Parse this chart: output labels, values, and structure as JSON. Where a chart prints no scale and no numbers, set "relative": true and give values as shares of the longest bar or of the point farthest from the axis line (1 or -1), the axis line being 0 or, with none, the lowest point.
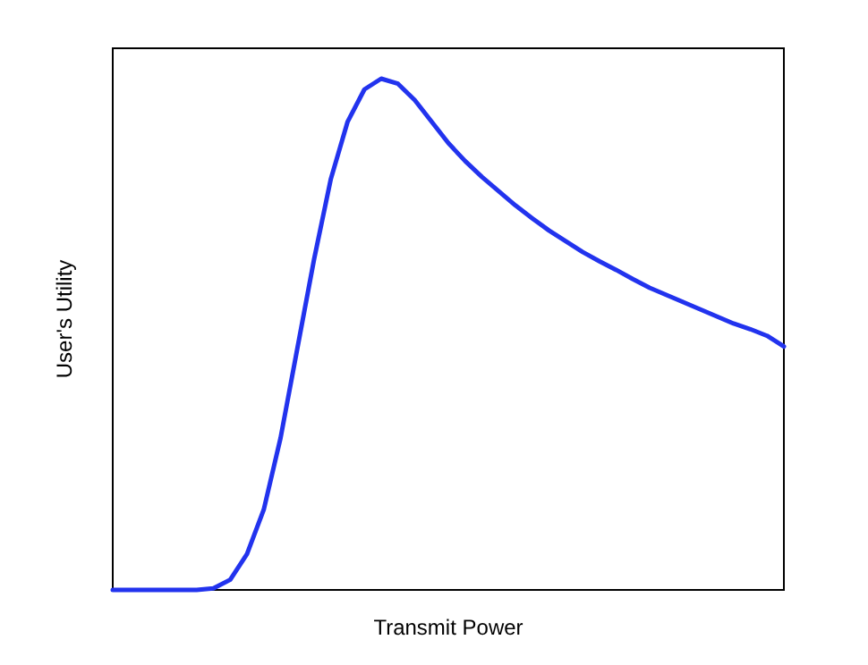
{
  "chart_data": {
    "type": "line",
    "xlabel": "Transmit Power",
    "ylabel": "User's Utility",
    "relative": true,
    "categories": [
      null,
      null,
      null,
      null,
      null,
      null,
      null,
      null,
      null,
      null,
      null,
      null,
      null,
      null,
      null,
      null,
      null,
      null,
      null,
      null,
      null,
      null,
      null,
      null,
      null,
      null,
      null,
      null,
      null,
      null,
      null,
      null,
      null,
      null,
      null,
      null,
      null,
      null,
      null,
      null,
      null
    ],
    "series": [
      {
        "color": "#2233ee",
        "values": [
          0,
          0,
          0,
          0,
          0,
          0,
          0.003,
          0.02,
          0.07,
          0.157,
          0.297,
          0.472,
          0.647,
          0.804,
          0.916,
          0.979,
          1,
          0.99,
          0.958,
          0.916,
          0.874,
          0.839,
          0.808,
          0.78,
          0.752,
          0.727,
          0.703,
          0.682,
          0.661,
          0.643,
          0.626,
          0.608,
          0.591,
          0.577,
          0.563,
          0.549,
          0.535,
          0.521,
          0.51,
          0.497,
          0.476
        ]
      }
    ]
  }
}
